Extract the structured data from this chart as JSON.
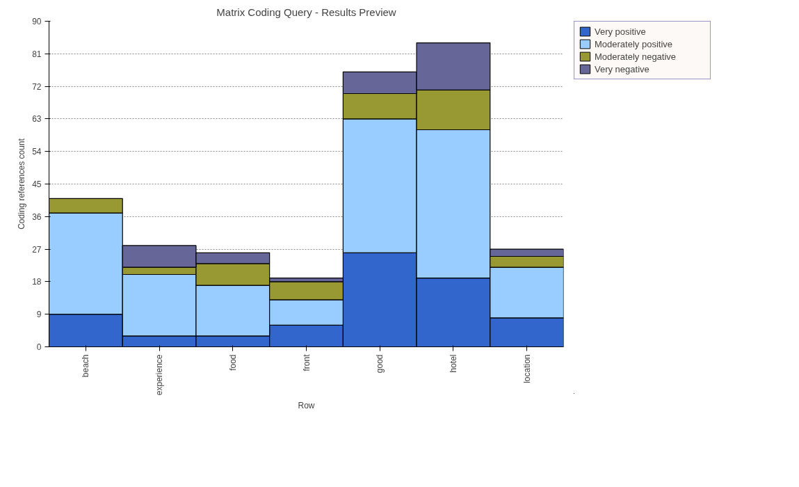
{
  "chart_data": {
    "type": "bar",
    "title": "Matrix Coding Query - Results Preview",
    "xlabel": "Row",
    "ylabel": "Coding references count",
    "categories": [
      "beach",
      "experience",
      "food",
      "front",
      "good",
      "hotel",
      "location"
    ],
    "stacked": true,
    "series": [
      {
        "name": "Very positive",
        "color": "#3366cc",
        "values": [
          9,
          3,
          3,
          6,
          26,
          19,
          8
        ]
      },
      {
        "name": "Moderately positive",
        "color": "#99ccff",
        "values": [
          28,
          17,
          14,
          7,
          37,
          41,
          14
        ]
      },
      {
        "name": "Moderately negative",
        "color": "#999933",
        "values": [
          4,
          2,
          6,
          5,
          7,
          11,
          3
        ]
      },
      {
        "name": "Very negative",
        "color": "#666699",
        "values": [
          null,
          6,
          3,
          1,
          6,
          13,
          2
        ]
      }
    ],
    "ylim": [
      0,
      90
    ],
    "yticks": [
      0,
      9,
      18,
      27,
      36,
      45,
      54,
      63,
      72,
      81,
      90
    ],
    "grid": "y",
    "legend": "right"
  }
}
